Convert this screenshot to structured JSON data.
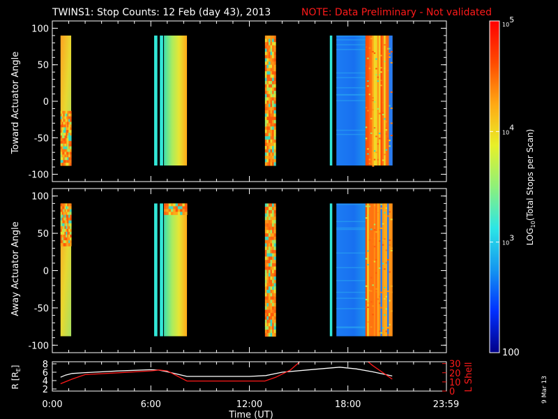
{
  "title": "TWINS1: Stop Counts: 12 Feb (day  43), 2013",
  "note": "NOTE: Data Preliminary - Not validated",
  "side_date": "9 Mar 13",
  "colors": {
    "background": "#000000",
    "axes": "#ffffff",
    "note": "#ff1a1a",
    "r_line": "#ffffff",
    "l_line": "#ff1a1a"
  },
  "chart_data": [
    {
      "type": "heatmap",
      "name": "toward",
      "ylabel": "Toward Actuator Angle",
      "xlim": [
        0,
        24
      ],
      "ylim": [
        -110,
        110
      ],
      "yticks": [
        100,
        50,
        0,
        -50,
        -100
      ],
      "angle_range": [
        -88,
        90
      ],
      "blocks": [
        {
          "start": 0.5,
          "end": 1.15,
          "pattern": "warm-upper-noisy-lower"
        },
        {
          "start": 6.2,
          "end": 6.4,
          "pattern": "cyan-line"
        },
        {
          "start": 6.55,
          "end": 6.75,
          "pattern": "cyan-line"
        },
        {
          "start": 6.8,
          "end": 8.2,
          "pattern": "green-yellow-orange"
        },
        {
          "start": 12.95,
          "end": 13.6,
          "pattern": "striped-orange"
        },
        {
          "start": 16.9,
          "end": 17.05,
          "pattern": "cyan-line"
        },
        {
          "start": 17.3,
          "end": 20.7,
          "pattern": "blue-then-orange-stripes"
        }
      ]
    },
    {
      "type": "heatmap",
      "name": "away",
      "ylabel": "Away Actuator Angle",
      "xlim": [
        0,
        24
      ],
      "ylim": [
        -110,
        110
      ],
      "yticks": [
        100,
        50,
        0,
        -50,
        -100
      ],
      "angle_range": [
        -88,
        90
      ],
      "blocks": [
        {
          "start": 0.5,
          "end": 1.15,
          "pattern": "noisy-upper-warm-lower"
        },
        {
          "start": 6.2,
          "end": 6.4,
          "pattern": "cyan-line"
        },
        {
          "start": 6.55,
          "end": 6.75,
          "pattern": "cyan-line"
        },
        {
          "start": 6.8,
          "end": 8.2,
          "pattern": "green-yellow-orange"
        },
        {
          "start": 12.95,
          "end": 13.6,
          "pattern": "striped-orange"
        },
        {
          "start": 16.9,
          "end": 17.05,
          "pattern": "cyan-line"
        },
        {
          "start": 17.3,
          "end": 20.7,
          "pattern": "blue-then-orange-stripes"
        }
      ]
    },
    {
      "type": "line",
      "name": "orbit",
      "ylabel_left": "R [R",
      "ylabel_left_sub": "E",
      "ylabel_left_close": "]",
      "ylabel_right": "L Shell",
      "xlabel": "Time (UT)",
      "xlim": [
        0,
        24
      ],
      "xticks": [
        {
          "value": 0,
          "label": "0:00"
        },
        {
          "value": 6,
          "label": "6:00"
        },
        {
          "value": 12,
          "label": "12:00"
        },
        {
          "value": 18,
          "label": "18:00"
        },
        {
          "value": 23.98,
          "label": "23:59"
        }
      ],
      "ylim_left": [
        1.5,
        8.5
      ],
      "yticks_left": [
        2,
        4,
        6,
        8
      ],
      "ylim_right": [
        0,
        32
      ],
      "yticks_right": [
        0,
        10,
        20,
        30
      ],
      "series": [
        {
          "axis": "left",
          "color": "#ffffff",
          "x": [
            0.5,
            0.8,
            1.2,
            2.0,
            4.0,
            6.0,
            6.5,
            7.0,
            8.2,
            10.0,
            12.0,
            13.0,
            14.0,
            16.0,
            17.5,
            18.5,
            19.5,
            20.7
          ],
          "y": [
            4.8,
            5.3,
            5.7,
            5.9,
            6.3,
            6.6,
            6.5,
            6.1,
            5.0,
            5.0,
            5.0,
            5.2,
            6.0,
            6.7,
            7.2,
            6.8,
            6.1,
            5.1
          ]
        },
        {
          "axis": "right",
          "color": "#ff1a1a",
          "x": [
            0.5,
            1.2,
            2.0,
            4.0,
            6.0,
            6.5,
            7.0,
            8.2,
            10.0,
            12.0,
            12.95,
            13.6,
            14.5,
            15.2,
            19.1,
            19.5,
            20.7
          ],
          "y": [
            8,
            13,
            18,
            20,
            22,
            23,
            22,
            11,
            11,
            11,
            11,
            15,
            23,
            34,
            34,
            28,
            13
          ]
        }
      ]
    }
  ],
  "colorbar": {
    "label": "LOG",
    "label_sub": "10",
    "label_rest": "(Total Stops per Scan)",
    "scale": "log",
    "range": [
      100,
      100000
    ],
    "ticks": [
      {
        "value": 100000,
        "base": "10",
        "exp": "5"
      },
      {
        "value": 10000,
        "base": "10",
        "exp": "4"
      },
      {
        "value": 1000,
        "base": "10",
        "exp": "3"
      },
      {
        "value": 100,
        "base": "100",
        "exp": ""
      }
    ],
    "stops": [
      "#000088",
      "#0030ff",
      "#1496f0",
      "#2ce6e6",
      "#8ef07a",
      "#e8f028",
      "#ffa814",
      "#ff4a00",
      "#ff0000"
    ]
  }
}
